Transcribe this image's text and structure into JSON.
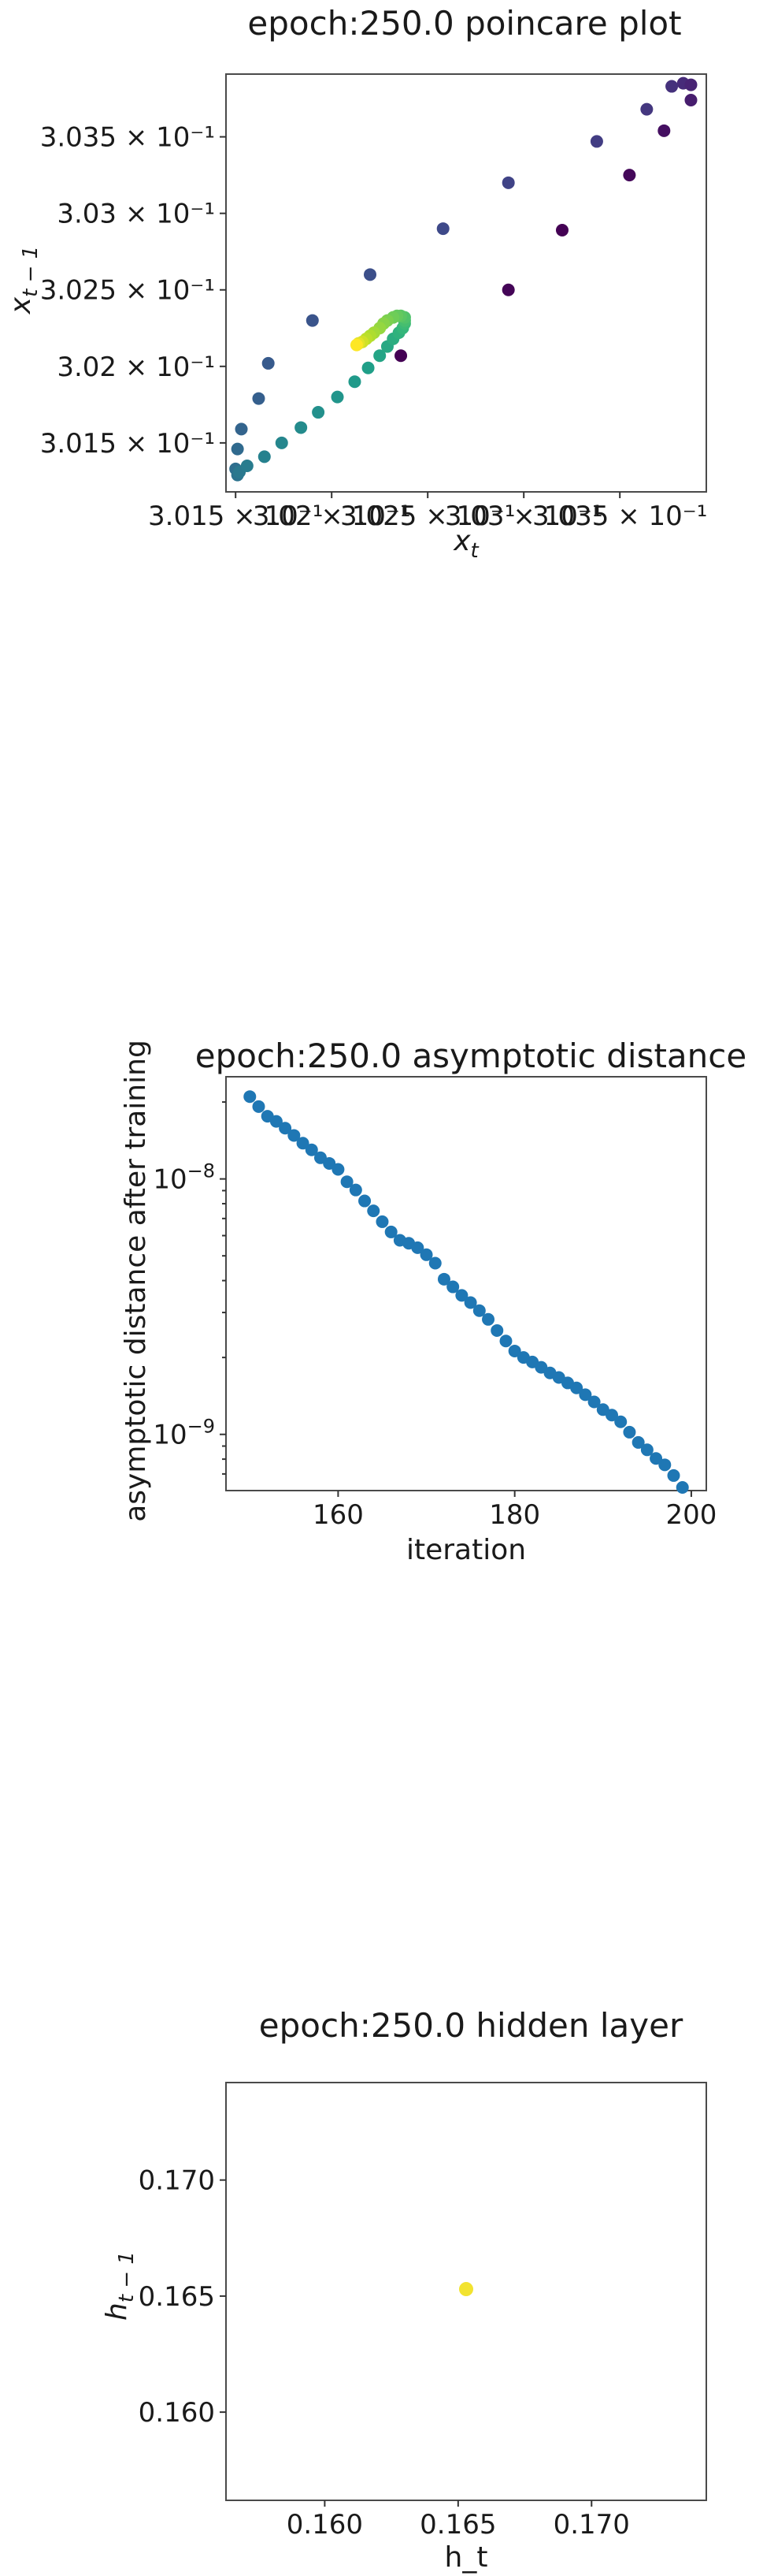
{
  "chart_data": [
    {
      "type": "scatter",
      "title": "epoch:250.0 poincare plot",
      "xlabel": "x",
      "xlabel_subscript": "t",
      "ylabel": "x",
      "ylabel_subscript": "t − 1",
      "xlim": [
        0.30145,
        0.30395
      ],
      "ylim": [
        0.30118,
        0.30391
      ],
      "xticks": [
        {
          "value": 0.3015,
          "label": "3.015 × 10⁻¹"
        },
        {
          "value": 0.302,
          "label": "3.02 × 10⁻¹"
        },
        {
          "value": 0.3025,
          "label": "3.025 × 10⁻¹"
        },
        {
          "value": 0.303,
          "label": "3.03 × 10⁻¹"
        },
        {
          "value": 0.3035,
          "label": "3.035 × 10⁻¹"
        }
      ],
      "yticks": [
        {
          "value": 0.3015,
          "label": "3.015 × 10⁻¹"
        },
        {
          "value": 0.302,
          "label": "3.02 × 10⁻¹"
        },
        {
          "value": 0.3025,
          "label": "3.025 × 10⁻¹"
        },
        {
          "value": 0.303,
          "label": "3.03 × 10⁻¹"
        },
        {
          "value": 0.3035,
          "label": "3.035 × 10⁻¹"
        }
      ],
      "colormap": "viridis",
      "points": [
        {
          "x": 0.30387,
          "y": 0.30374,
          "c": 0.08
        },
        {
          "x": 0.30383,
          "y": 0.30385,
          "c": 0.12
        },
        {
          "x": 0.30387,
          "y": 0.30384,
          "c": 0.1
        },
        {
          "x": 0.30377,
          "y": 0.30383,
          "c": 0.14
        },
        {
          "x": 0.30373,
          "y": 0.30354,
          "c": 0.04
        },
        {
          "x": 0.30364,
          "y": 0.30368,
          "c": 0.16
        },
        {
          "x": 0.30355,
          "y": 0.30325,
          "c": 0.02
        },
        {
          "x": 0.30338,
          "y": 0.30347,
          "c": 0.18
        },
        {
          "x": 0.3032,
          "y": 0.30289,
          "c": 0.0
        },
        {
          "x": 0.30292,
          "y": 0.3032,
          "c": 0.2
        },
        {
          "x": 0.30292,
          "y": 0.3025,
          "c": 0.01
        },
        {
          "x": 0.30258,
          "y": 0.3029,
          "c": 0.22
        },
        {
          "x": 0.30236,
          "y": 0.30207,
          "c": 0.0
        },
        {
          "x": 0.3022,
          "y": 0.3026,
          "c": 0.24
        },
        {
          "x": 0.3019,
          "y": 0.3023,
          "c": 0.26
        },
        {
          "x": 0.30167,
          "y": 0.30202,
          "c": 0.28
        },
        {
          "x": 0.30162,
          "y": 0.30179,
          "c": 0.3
        },
        {
          "x": 0.30153,
          "y": 0.30159,
          "c": 0.32
        },
        {
          "x": 0.30151,
          "y": 0.30146,
          "c": 0.34
        },
        {
          "x": 0.3015,
          "y": 0.30133,
          "c": 0.36
        },
        {
          "x": 0.30151,
          "y": 0.30129,
          "c": 0.38
        },
        {
          "x": 0.30152,
          "y": 0.30131,
          "c": 0.4
        },
        {
          "x": 0.30156,
          "y": 0.30135,
          "c": 0.42
        },
        {
          "x": 0.30165,
          "y": 0.30141,
          "c": 0.44
        },
        {
          "x": 0.30174,
          "y": 0.3015,
          "c": 0.46
        },
        {
          "x": 0.30184,
          "y": 0.3016,
          "c": 0.48
        },
        {
          "x": 0.30193,
          "y": 0.3017,
          "c": 0.5
        },
        {
          "x": 0.30203,
          "y": 0.3018,
          "c": 0.52
        },
        {
          "x": 0.30212,
          "y": 0.3019,
          "c": 0.54
        },
        {
          "x": 0.30219,
          "y": 0.30199,
          "c": 0.56
        },
        {
          "x": 0.30225,
          "y": 0.30207,
          "c": 0.58
        },
        {
          "x": 0.30229,
          "y": 0.30213,
          "c": 0.6
        },
        {
          "x": 0.30232,
          "y": 0.30218,
          "c": 0.62
        },
        {
          "x": 0.30235,
          "y": 0.30222,
          "c": 0.64
        },
        {
          "x": 0.30237,
          "y": 0.30225,
          "c": 0.66
        },
        {
          "x": 0.30238,
          "y": 0.30228,
          "c": 0.68
        },
        {
          "x": 0.30238,
          "y": 0.3023,
          "c": 0.7
        },
        {
          "x": 0.30238,
          "y": 0.30232,
          "c": 0.72
        },
        {
          "x": 0.30236,
          "y": 0.30233,
          "c": 0.74
        },
        {
          "x": 0.30234,
          "y": 0.30233,
          "c": 0.76
        },
        {
          "x": 0.30232,
          "y": 0.30232,
          "c": 0.78
        },
        {
          "x": 0.30229,
          "y": 0.3023,
          "c": 0.8
        },
        {
          "x": 0.30227,
          "y": 0.30228,
          "c": 0.82
        },
        {
          "x": 0.30225,
          "y": 0.30225,
          "c": 0.84
        },
        {
          "x": 0.30222,
          "y": 0.30222,
          "c": 0.86
        },
        {
          "x": 0.3022,
          "y": 0.3022,
          "c": 0.88
        },
        {
          "x": 0.30218,
          "y": 0.30218,
          "c": 0.9
        },
        {
          "x": 0.30216,
          "y": 0.30216,
          "c": 0.93
        },
        {
          "x": 0.30214,
          "y": 0.30215,
          "c": 0.96
        },
        {
          "x": 0.30213,
          "y": 0.30214,
          "c": 1.0
        }
      ]
    },
    {
      "type": "scatter",
      "title": "epoch:250.0 asymptotic distance",
      "xlabel": "iteration",
      "ylabel": "asymptotic distance after training",
      "y_scale": "log",
      "xlim": [
        147.3,
        201.7
      ],
      "ylim_log10": [
        -9.22,
        -7.6
      ],
      "xticks": [
        {
          "value": 160,
          "label": "160"
        },
        {
          "value": 180,
          "label": "180"
        },
        {
          "value": 200,
          "label": "200"
        }
      ],
      "yticks": [
        {
          "value": 1e-08,
          "base": "10",
          "exp": "−8"
        },
        {
          "value": 1e-09,
          "base": "10",
          "exp": "−9"
        }
      ],
      "color": "#1f77b4",
      "x": [
        150,
        151,
        152,
        153,
        154,
        155,
        156,
        157,
        158,
        159,
        160,
        161,
        162,
        163,
        164,
        165,
        166,
        167,
        168,
        169,
        170,
        171,
        172,
        173,
        174,
        175,
        176,
        177,
        178,
        179,
        180,
        181,
        182,
        183,
        184,
        185,
        186,
        187,
        188,
        189,
        190,
        191,
        192,
        193,
        194,
        195,
        196,
        197,
        198,
        199
      ],
      "y": [
        2.1e-08,
        1.92e-08,
        1.76e-08,
        1.68e-08,
        1.58e-08,
        1.48e-08,
        1.38e-08,
        1.3e-08,
        1.21e-08,
        1.15e-08,
        1.09e-08,
        9.75e-09,
        9.05e-09,
        8.2e-09,
        7.5e-09,
        6.8e-09,
        6.2e-09,
        5.75e-09,
        5.6e-09,
        5.38e-09,
        5.05e-09,
        4.68e-09,
        4.05e-09,
        3.78e-09,
        3.5e-09,
        3.28e-09,
        3.05e-09,
        2.82e-09,
        2.55e-09,
        2.32e-09,
        2.12e-09,
        2e-09,
        1.92e-09,
        1.83e-09,
        1.74e-09,
        1.67e-09,
        1.59e-09,
        1.52e-09,
        1.43e-09,
        1.34e-09,
        1.25e-09,
        1.19e-09,
        1.12e-09,
        1.02e-09,
        9.3e-10,
        8.7e-10,
        8.05e-10,
        7.6e-10,
        6.9e-10,
        6.2e-10
      ]
    },
    {
      "type": "scatter",
      "title": "epoch:250.0 hidden layer",
      "xlabel": "h_t",
      "ylabel": "h",
      "ylabel_subscript": "t − 1",
      "xlim": [
        0.1563,
        0.1743
      ],
      "ylim": [
        0.1562,
        0.1742
      ],
      "xticks": [
        {
          "value": 0.16,
          "label": "0.160"
        },
        {
          "value": 0.165,
          "label": "0.165"
        },
        {
          "value": 0.17,
          "label": "0.170"
        }
      ],
      "yticks": [
        {
          "value": 0.16,
          "label": "0.160"
        },
        {
          "value": 0.165,
          "label": "0.165"
        },
        {
          "value": 0.17,
          "label": "0.170"
        }
      ],
      "color": "#f2e330",
      "points": [
        {
          "x": 0.1653,
          "y": 0.1653
        }
      ]
    }
  ]
}
